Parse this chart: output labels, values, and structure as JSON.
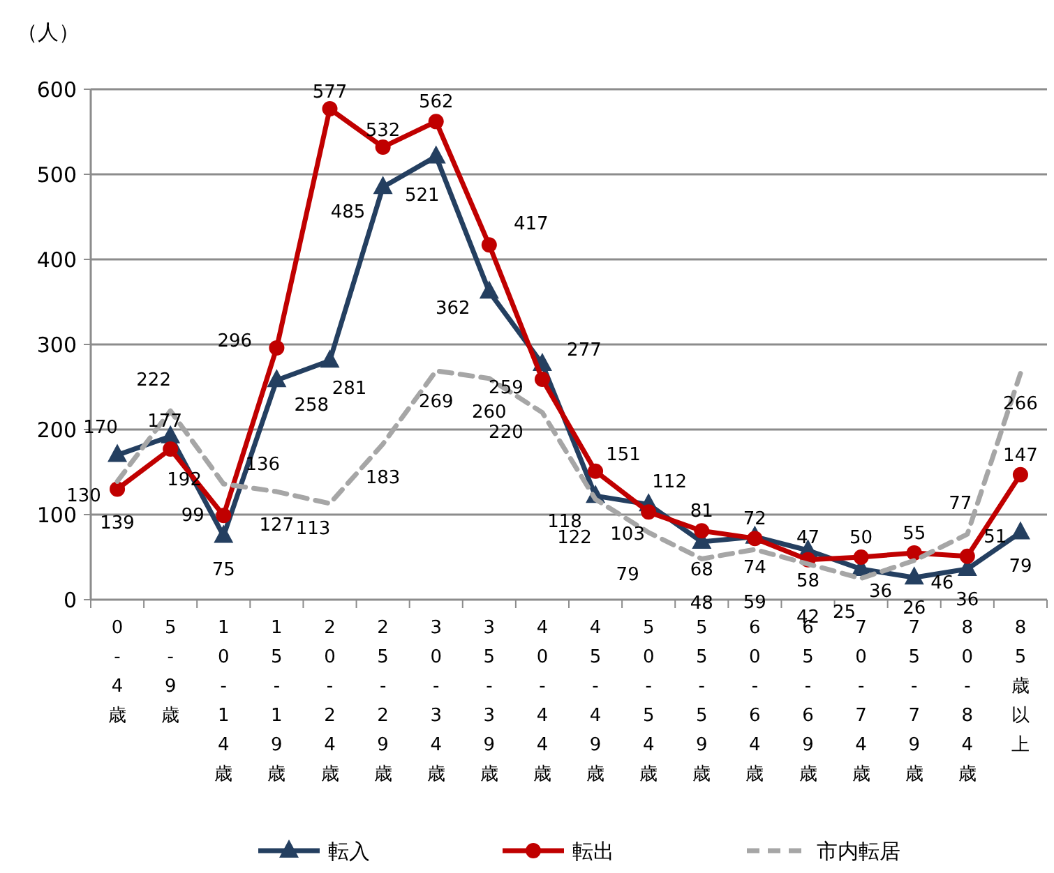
{
  "chart_data": {
    "type": "line",
    "ylabel": "（人）",
    "categories": [
      "0-4歳",
      "5-9歳",
      "10-14歳",
      "15-19歳",
      "20-24歳",
      "25-29歳",
      "30-34歳",
      "35-39歳",
      "40-44歳",
      "45-49歳",
      "50-54歳",
      "55-59歳",
      "60-64歳",
      "65-69歳",
      "70-74歳",
      "75-79歳",
      "80-84歳",
      "85歳以上"
    ],
    "series": [
      {
        "name": "転入",
        "color": "#243f60",
        "marker": "triangle",
        "line_style": "solid",
        "values": [
          170,
          192,
          75,
          258,
          281,
          485,
          521,
          362,
          277,
          122,
          112,
          68,
          74,
          58,
          36,
          26,
          36,
          79
        ]
      },
      {
        "name": "転出",
        "color": "#c00000",
        "marker": "circle",
        "line_style": "solid",
        "values": [
          130,
          177,
          99,
          296,
          577,
          532,
          562,
          417,
          259,
          151,
          103,
          81,
          72,
          47,
          50,
          55,
          51,
          147
        ]
      },
      {
        "name": "市内転居",
        "color": "#a6a6a6",
        "marker": "none",
        "line_style": "dashed",
        "values": [
          139,
          222,
          136,
          127,
          113,
          183,
          269,
          260,
          220,
          118,
          79,
          48,
          59,
          42,
          25,
          46,
          77,
          266
        ]
      }
    ],
    "ylim": [
      0,
      600
    ],
    "yticks": [
      0,
      100,
      200,
      300,
      400,
      500,
      600
    ],
    "grid": "y",
    "legend": "bottom",
    "data_labels": true
  }
}
